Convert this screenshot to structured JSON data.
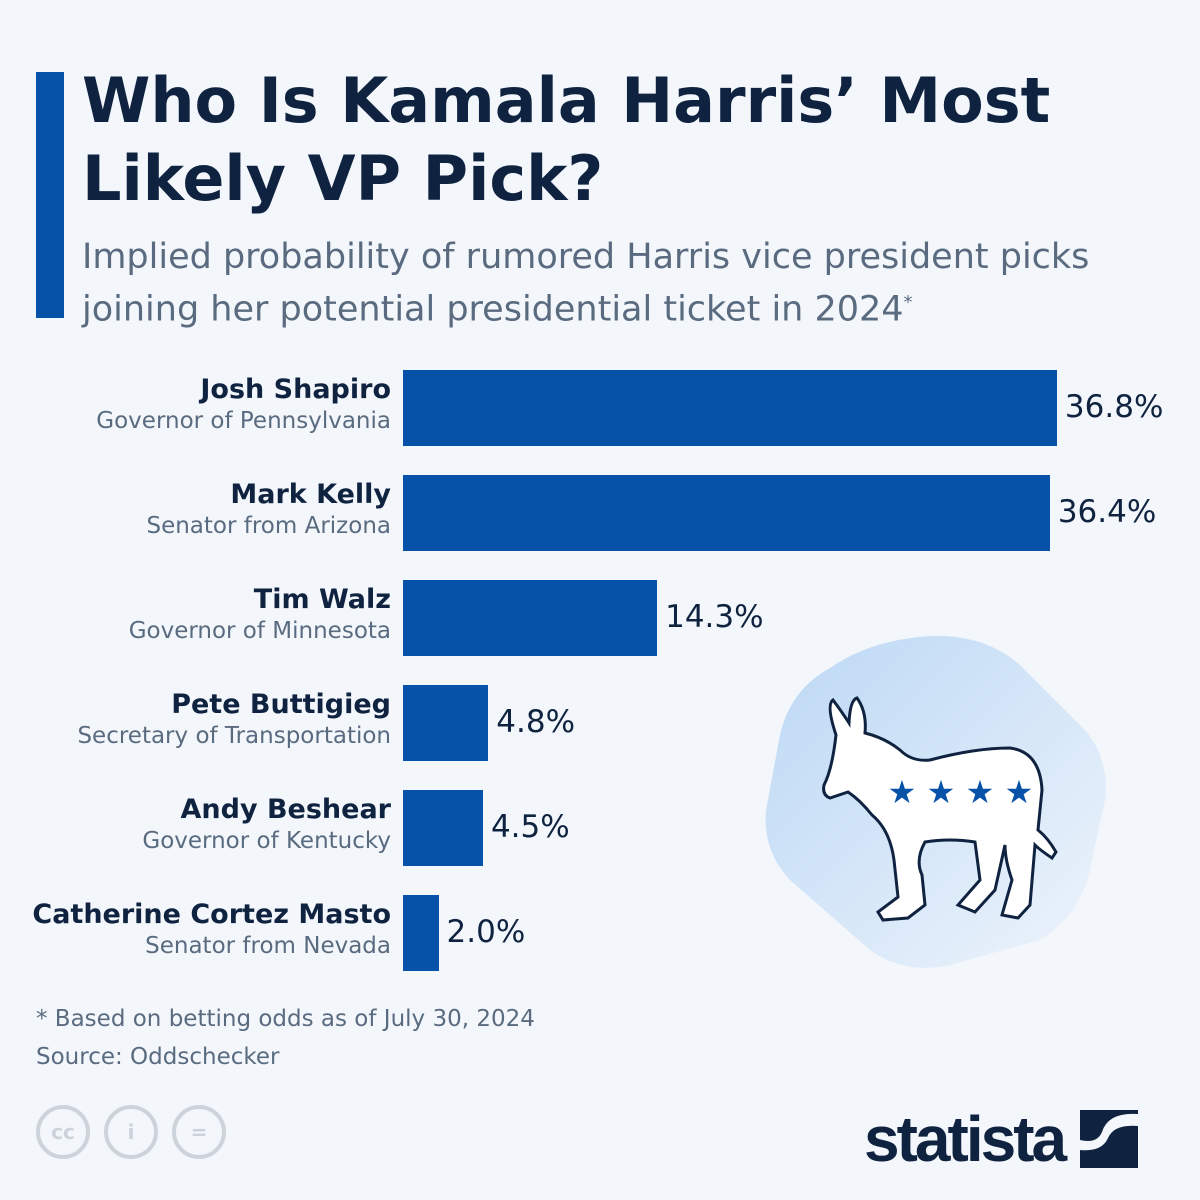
{
  "title": "Who Is Kamala Harris’ Most Likely VP Pick?",
  "subtitle": "Implied probability of rumored Harris vice president picks joining her potential presidential ticket in 2024",
  "subtitle_mark": "*",
  "colors": {
    "bar": "#0652a8",
    "accent": "#0652a8",
    "text": "#0f2340",
    "muted": "#5a6b80"
  },
  "chart_data": {
    "type": "bar",
    "orientation": "horizontal",
    "unit": "%",
    "categories": [
      "Josh Shapiro",
      "Mark Kelly",
      "Tim Walz",
      "Pete Buttigieg",
      "Andy Beshear",
      "Catherine Cortez Masto"
    ],
    "roles": [
      "Governor of Pennsylvania",
      "Senator from Arizona",
      "Governor of Minnesota",
      "Secretary of Transportation",
      "Governor of Kentucky",
      "Senator from Nevada"
    ],
    "values": [
      36.8,
      36.4,
      14.3,
      4.8,
      4.5,
      2.0
    ],
    "data_labels": [
      "36.8%",
      "36.4%",
      "14.3%",
      "4.8%",
      "4.5%",
      "2.0%"
    ],
    "grid": false
  },
  "illustration": "democratic-donkey-icon",
  "footnote": "* Based on betting odds as of July 30, 2024",
  "source": "Source: Oddschecker",
  "license_icons": [
    "cc-icon",
    "attribution-icon",
    "no-derivatives-icon"
  ],
  "brand": "statista"
}
